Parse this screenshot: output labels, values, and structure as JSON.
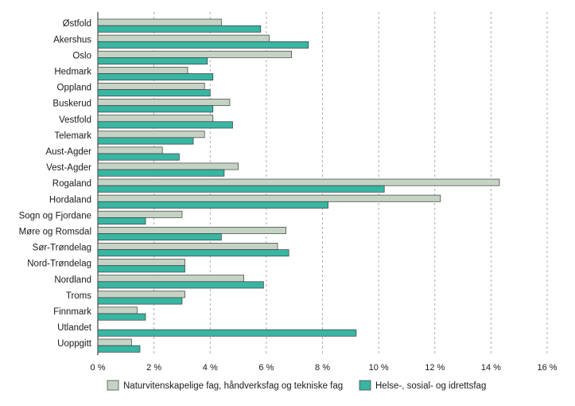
{
  "chart_data": {
    "type": "bar",
    "orientation": "horizontal",
    "categories": [
      "Østfold",
      "Akershus",
      "Oslo",
      "Hedmark",
      "Oppland",
      "Buskerud",
      "Vestfold",
      "Telemark",
      "Aust-Agder",
      "Vest-Agder",
      "Rogaland",
      "Hordaland",
      "Sogn og Fjordane",
      "Møre og Romsdal",
      "Sør-Trøndelag",
      "Nord-Trøndelag",
      "Nordland",
      "Troms",
      "Finnmark",
      "Utlandet",
      "Uoppgitt"
    ],
    "series": [
      {
        "name": "Naturvitenskapelige fag, håndverksfag og tekniske fag",
        "color": "#c5d3c4",
        "values": [
          4.4,
          6.1,
          6.9,
          3.2,
          3.8,
          4.7,
          4.1,
          3.8,
          2.3,
          5.0,
          14.3,
          12.2,
          3.0,
          6.7,
          6.4,
          3.1,
          5.2,
          3.1,
          1.4,
          null,
          1.2
        ]
      },
      {
        "name": "Helse-, sosial- og idrettsfag",
        "color": "#39b5a3",
        "values": [
          5.8,
          7.5,
          3.9,
          4.1,
          4.0,
          4.1,
          4.8,
          3.4,
          2.9,
          4.5,
          10.2,
          8.2,
          1.7,
          4.4,
          6.8,
          3.1,
          5.9,
          3.0,
          1.7,
          9.2,
          1.5
        ]
      }
    ],
    "xlim": [
      0,
      16
    ],
    "xticks": [
      "0 %",
      "2 %",
      "4 %",
      "6 %",
      "8 %",
      "10 %",
      "12 %",
      "14 %",
      "16 %"
    ],
    "xtick_values": [
      0,
      2,
      4,
      6,
      8,
      10,
      12,
      14,
      16
    ],
    "grid": "vertical-dashed",
    "legend_position": "bottom"
  }
}
